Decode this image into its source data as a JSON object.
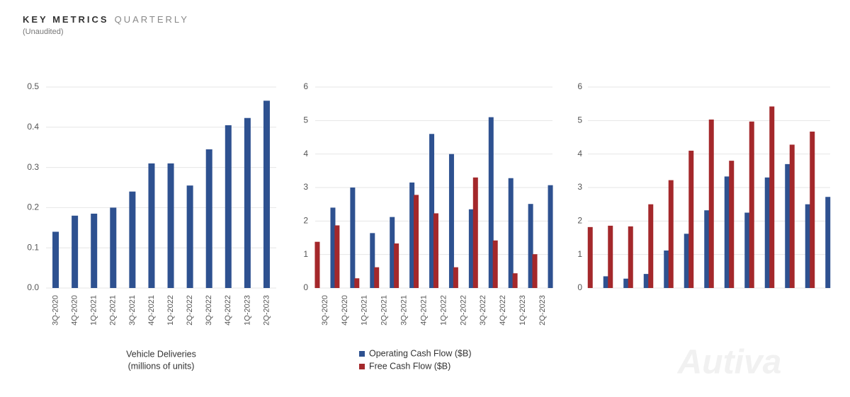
{
  "header": {
    "title": "KEY METRICS",
    "title_suffix": "QUARTERLY",
    "note": "(Unaudited)"
  },
  "watermark": "Autiva",
  "chart_data": [
    {
      "type": "bar",
      "categories": [
        "3Q-2020",
        "4Q-2020",
        "1Q-2021",
        "2Q-2021",
        "3Q-2021",
        "4Q-2021",
        "1Q-2022",
        "2Q-2022",
        "3Q-2022",
        "4Q-2022",
        "1Q-2023",
        "2Q-2023"
      ],
      "values": [
        0.14,
        0.18,
        0.185,
        0.2,
        0.24,
        0.31,
        0.31,
        0.255,
        0.345,
        0.405,
        0.423,
        0.466
      ],
      "color": "#2e5190",
      "ylim": [
        0,
        0.5
      ],
      "yticks": [
        {
          "value": 0,
          "label": "0.0"
        },
        0.1,
        0.2,
        0.3,
        0.4,
        0.5
      ],
      "grid": true,
      "xlabel": [
        "Vehicle Deliveries",
        "(millions of units)"
      ]
    },
    {
      "type": "bar",
      "categories": [
        "3Q-2020",
        "4Q-2020",
        "1Q-2021",
        "2Q-2021",
        "3Q-2021",
        "4Q-2021",
        "1Q-2022",
        "2Q-2022",
        "3Q-2022",
        "4Q-2022",
        "1Q-2023",
        "2Q-2023"
      ],
      "series": [
        {
          "name": "Operating Cash Flow ($B)",
          "color": "#2e5190",
          "values": [
            2.4,
            3.0,
            1.64,
            2.12,
            3.15,
            4.6,
            4.0,
            2.35,
            5.1,
            3.28,
            2.51,
            3.07
          ]
        },
        {
          "name": "Free Cash Flow ($B)",
          "color": "#a4282b",
          "values": [
            1.38,
            1.87,
            0.29,
            0.62,
            1.33,
            2.78,
            2.23,
            0.62,
            3.3,
            1.42,
            0.44,
            1.01
          ]
        }
      ],
      "ylim": [
        0,
        6
      ],
      "yticks": [
        0,
        1,
        2,
        3,
        4,
        5,
        6
      ],
      "grid": true,
      "legend": "bottom"
    },
    {
      "type": "bar",
      "categories": [
        null,
        null,
        null,
        null,
        null,
        null,
        null,
        null,
        null,
        null,
        null,
        null
      ],
      "series": [
        {
          "color": "#2e5190",
          "values": [
            0.35,
            0.28,
            0.42,
            1.12,
            1.62,
            2.32,
            3.33,
            2.25,
            3.3,
            3.7,
            2.5,
            2.72
          ]
        },
        {
          "color": "#a4282b",
          "values": [
            1.82,
            1.86,
            1.84,
            2.5,
            3.22,
            4.1,
            5.03,
            3.8,
            4.97,
            5.42,
            4.28,
            4.67
          ]
        }
      ],
      "ylim": [
        0,
        6
      ],
      "yticks": [
        0,
        1,
        2,
        3,
        4,
        5,
        6
      ],
      "grid": true
    }
  ]
}
